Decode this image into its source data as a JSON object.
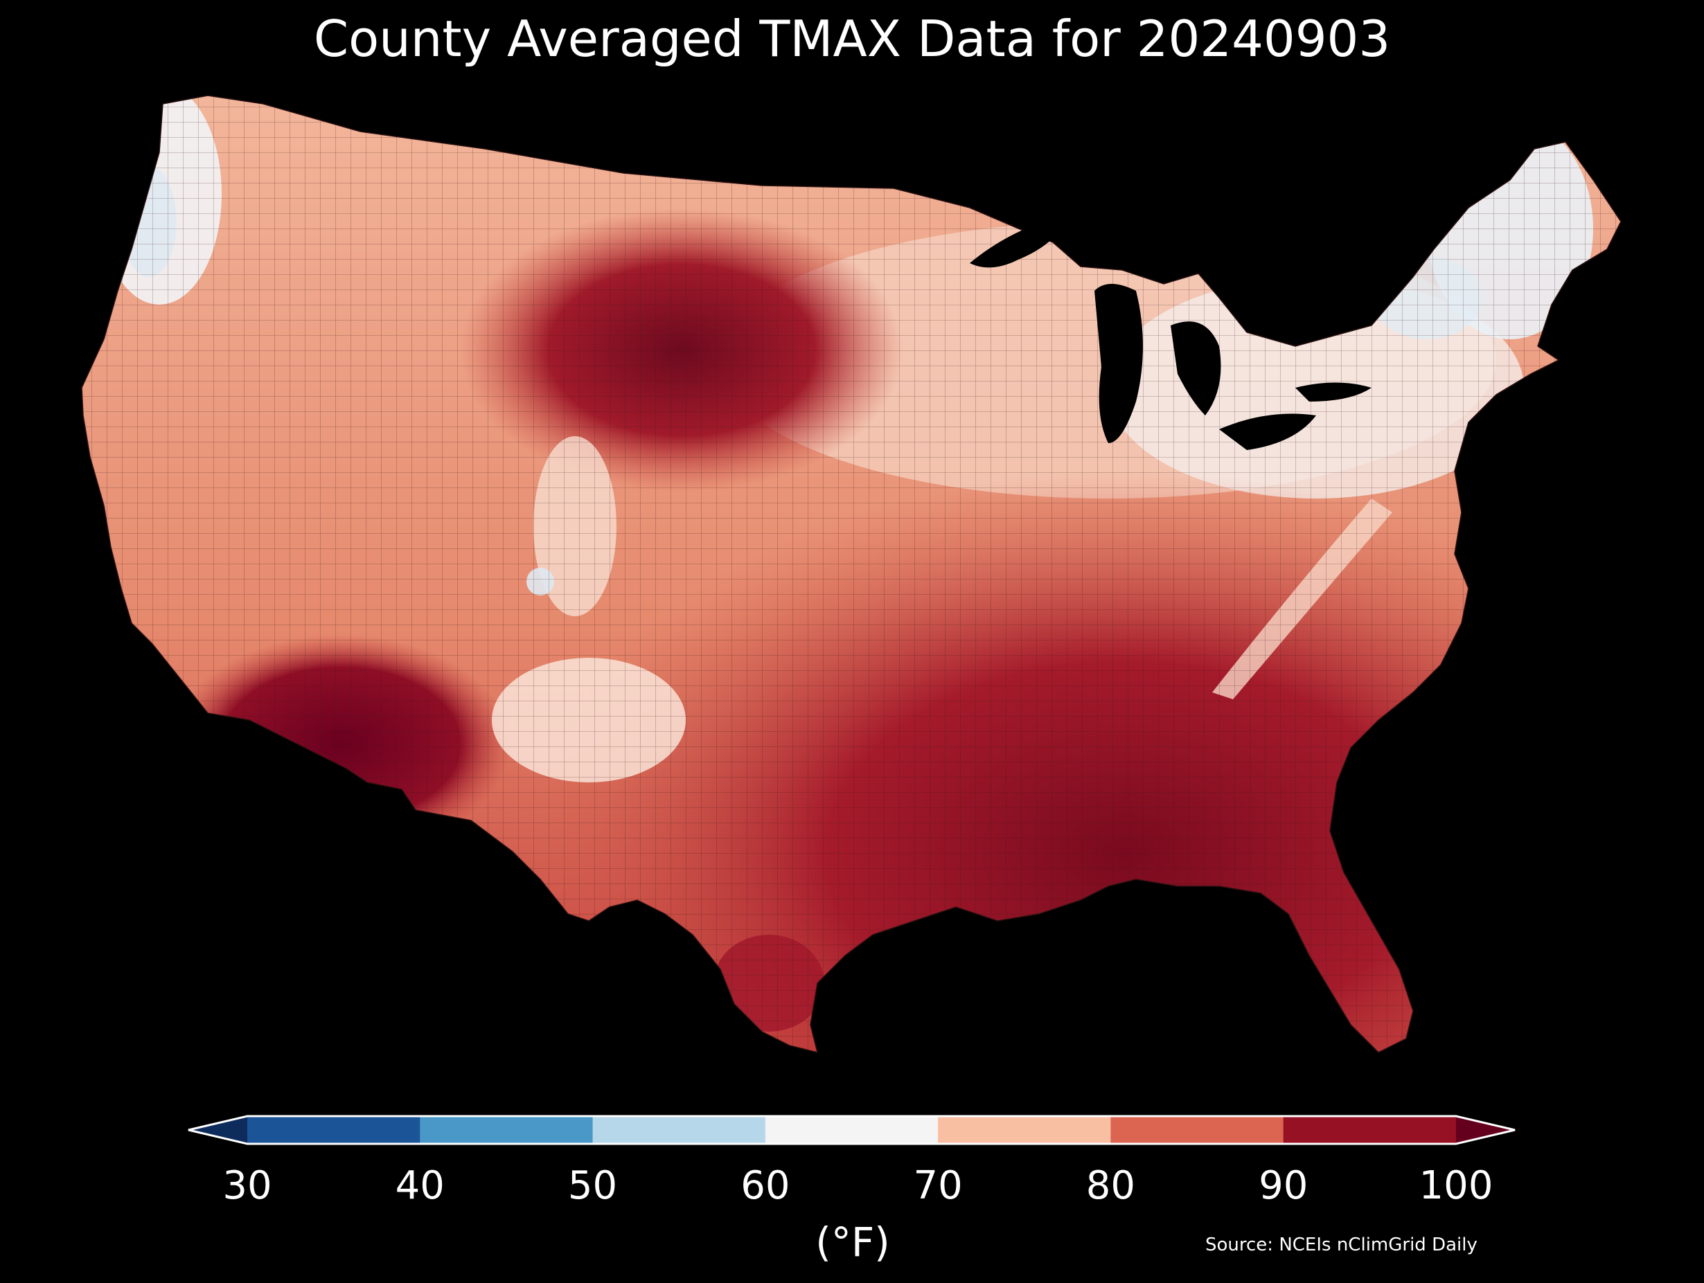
{
  "title": "County Averaged TMAX Data for 20240903",
  "source": "Source: NCEIs nClimGrid Daily",
  "colorbar": {
    "unit_label": "(°F)",
    "ticks": [
      "30",
      "40",
      "50",
      "60",
      "70",
      "80",
      "90",
      "100"
    ],
    "bins": [
      {
        "range": "<30",
        "color": "#0d2c5c"
      },
      {
        "range": "30-40",
        "color": "#1b5597"
      },
      {
        "range": "40-50",
        "color": "#4a98c8"
      },
      {
        "range": "50-60",
        "color": "#b6d7ea"
      },
      {
        "range": "60-70",
        "color": "#f4f4f4"
      },
      {
        "range": "70-80",
        "color": "#f8bfa3"
      },
      {
        "range": "80-90",
        "color": "#db6551"
      },
      {
        "range": "90-100",
        "color": "#961124"
      },
      {
        "range": ">100",
        "color": "#64001e"
      }
    ]
  },
  "map": {
    "region": "Contiguous United States counties",
    "background_color": "#000000",
    "border_color": "#3a1a1a"
  }
}
